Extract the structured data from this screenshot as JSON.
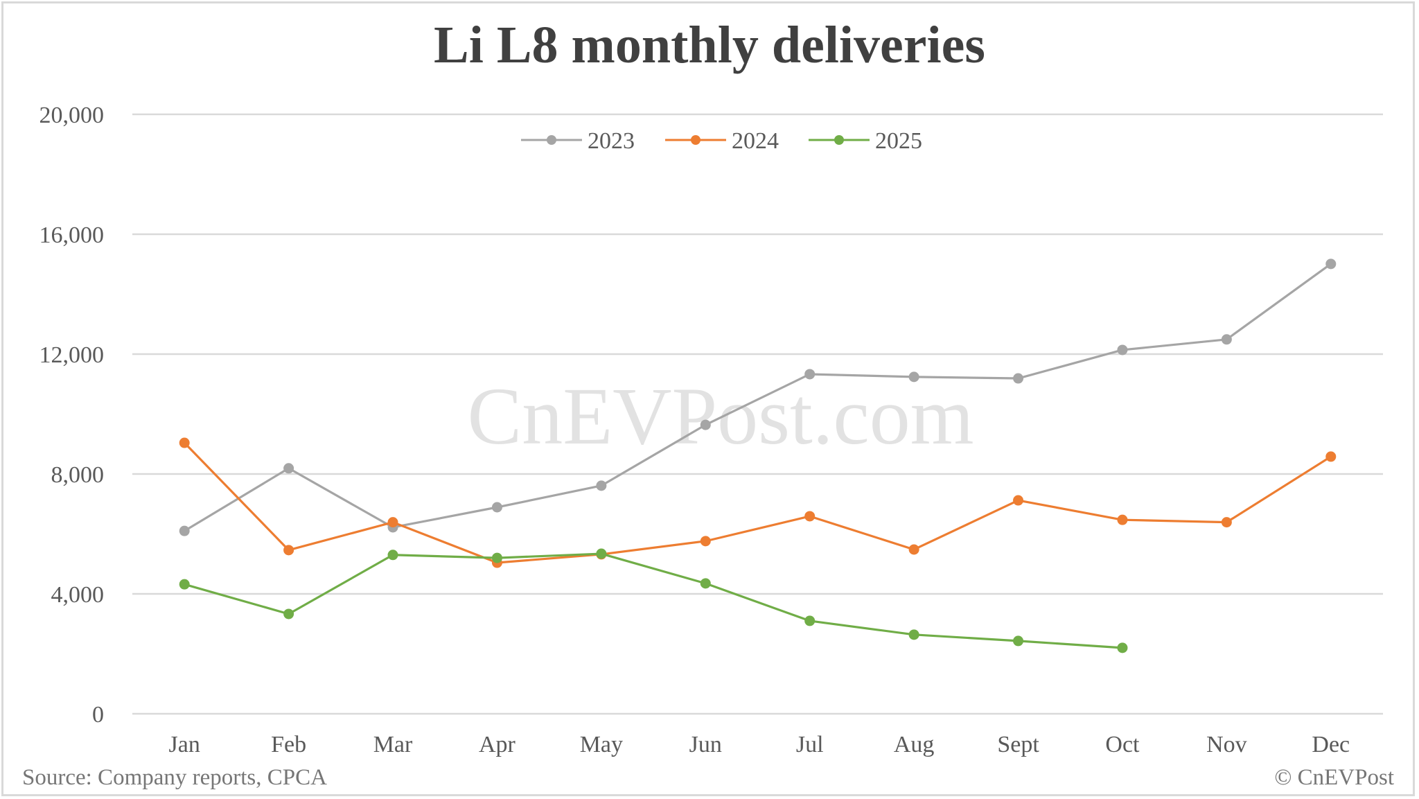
{
  "title": "Li L8 monthly deliveries",
  "source": "Source: Company reports, CPCA",
  "copyright": "© CnEVPost",
  "watermark": "CnEVPost.com",
  "colors": {
    "2023": "#a5a5a5",
    "2024": "#ed7d31",
    "2025": "#70ad47",
    "grid": "#d9d9d9",
    "text": "#595959"
  },
  "chart_data": {
    "type": "line",
    "title": "Li L8 monthly deliveries",
    "xlabel": "",
    "ylabel": "",
    "ylim": [
      0,
      20000
    ],
    "yticks": [
      0,
      4000,
      8000,
      12000,
      16000,
      20000
    ],
    "ytick_labels": [
      "0",
      "4,000",
      "8,000",
      "12,000",
      "16,000",
      "20,000"
    ],
    "grid": true,
    "legend_position": "top",
    "categories": [
      "Jan",
      "Feb",
      "Mar",
      "Apr",
      "May",
      "Jun",
      "Jul",
      "Aug",
      "Sept",
      "Oct",
      "Nov",
      "Dec"
    ],
    "series": [
      {
        "name": "2023",
        "color": "#a5a5a5",
        "values": [
          6100,
          8190,
          6220,
          6890,
          7610,
          9640,
          11330,
          11240,
          11190,
          12140,
          12490,
          15010
        ]
      },
      {
        "name": "2024",
        "color": "#ed7d31",
        "values": [
          9040,
          5460,
          6390,
          5040,
          5320,
          5760,
          6590,
          5480,
          7120,
          6470,
          6390,
          8580
        ]
      },
      {
        "name": "2025",
        "color": "#70ad47",
        "values": [
          4320,
          3330,
          5300,
          5200,
          5340,
          4350,
          3100,
          2640,
          2430,
          2200,
          null,
          null
        ]
      }
    ]
  }
}
